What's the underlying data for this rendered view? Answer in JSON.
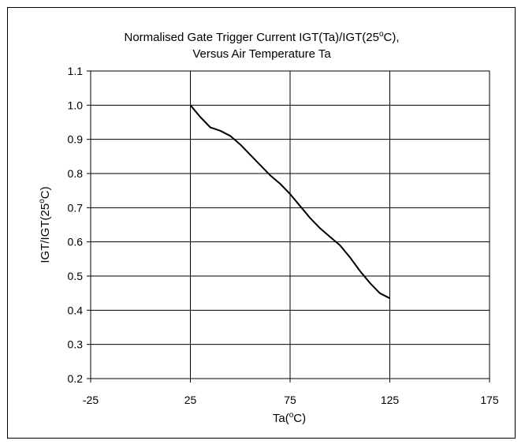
{
  "chart_data": {
    "type": "line",
    "title_line1": "Normalised Gate Trigger Current IGT(Ta)/IGT(25",
    "title_line1_sup": "o",
    "title_line1_end": "C),",
    "title_line2": "Versus Air Temperature Ta",
    "xlabel_pre": "Ta(",
    "xlabel_sup": "o",
    "xlabel_post": "C)",
    "ylabel_pre": "IGT/IGT(25",
    "ylabel_sup": "o",
    "ylabel_post": "C)",
    "xlim": [
      -25,
      175
    ],
    "ylim": [
      0.2,
      1.1
    ],
    "xticks": [
      "-25",
      "25",
      "75",
      "125",
      "175"
    ],
    "yticks": [
      "1.1",
      "1.0",
      "0.9",
      "0.8",
      "0.7",
      "0.6",
      "0.5",
      "0.4",
      "0.3",
      "0.2"
    ],
    "grid": true,
    "series": [
      {
        "x": [
          25,
          30,
          35,
          40,
          45,
          50,
          55,
          60,
          65,
          70,
          75,
          80,
          85,
          90,
          95,
          100,
          105,
          110,
          115,
          120,
          125
        ],
        "y": [
          1.0,
          0.965,
          0.935,
          0.925,
          0.91,
          0.885,
          0.855,
          0.825,
          0.795,
          0.77,
          0.74,
          0.705,
          0.67,
          0.64,
          0.615,
          0.59,
          0.555,
          0.515,
          0.48,
          0.45,
          0.435
        ]
      }
    ]
  }
}
